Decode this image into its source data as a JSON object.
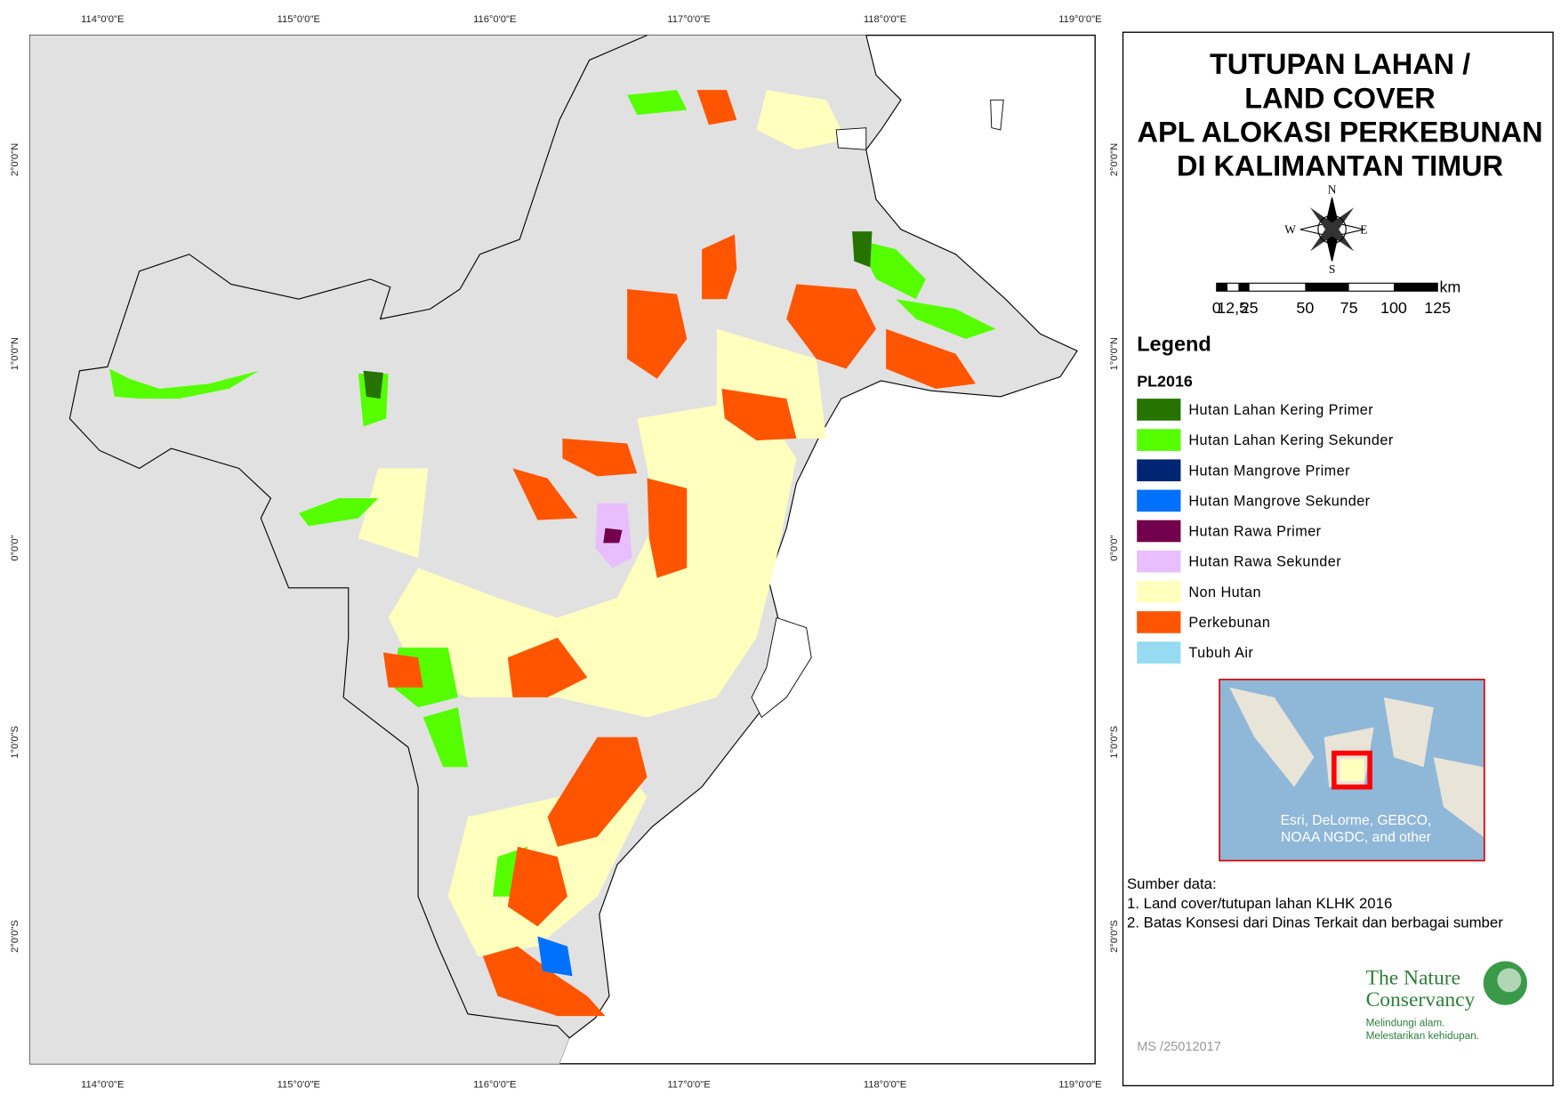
{
  "map": {
    "title": [
      "TUTUPAN LAHAN /",
      "LAND COVER",
      "APL ALOKASI PERKEBUNAN",
      "DI KALIMANTAN TIMUR"
    ],
    "top_labels": [
      "114°0'0\"E",
      "115°0'0\"E",
      "116°0'0\"E",
      "117°0'0\"E",
      "118°0'0\"E",
      "119°0'0\"E"
    ],
    "bottom_labels": [
      "114°0'0\"E",
      "115°0'0\"E",
      "116°0'0\"E",
      "117°0'0\"E",
      "118°0'0\"E",
      "119°0'0\"E"
    ],
    "left_labels": [
      "2°0'0\"N",
      "1°0'0\"N",
      "0°0'0\"",
      "1°0'0\"S",
      "2°0'0\"S"
    ],
    "right_labels": [
      "2°0'0\"N",
      "1°0'0\"N",
      "0°0'0\"",
      "1°0'0\"S",
      "2°0'0\"S"
    ]
  },
  "compass": {
    "n": "N",
    "s": "S",
    "w": "W",
    "e": "E"
  },
  "scale_bar": {
    "labels": [
      "0",
      "12,5",
      "25",
      "50",
      "75",
      "100",
      "125"
    ],
    "unit": "km"
  },
  "legend": {
    "title": "Legend",
    "subtitle": "PL2016",
    "items": [
      {
        "label": "Hutan Lahan Kering Primer",
        "color": "#267300"
      },
      {
        "label": "Hutan Lahan Kering Sekunder",
        "color": "#55ff00"
      },
      {
        "label": "Hutan Mangrove Primer",
        "color": "#002673"
      },
      {
        "label": "Hutan Mangrove Sekunder",
        "color": "#0070ff"
      },
      {
        "label": "Hutan Rawa Primer",
        "color": "#73004c"
      },
      {
        "label": "Hutan Rawa Sekunder",
        "color": "#e8beff"
      },
      {
        "label": "Non Hutan",
        "color": "#ffffbe"
      },
      {
        "label": "Perkebunan",
        "color": "#ff5500"
      },
      {
        "label": "Tubuh Air",
        "color": "#97dbf2"
      }
    ]
  },
  "inset": {
    "attribution": [
      "Esri, DeLorme, GEBCO,",
      "NOAA NGDC, and other"
    ]
  },
  "sources": {
    "heading": "Sumber data:",
    "lines": [
      "1. Land cover/tutupan lahan KLHK 2016",
      "2. Batas Konsesi dari Dinas Terkait dan berbagai sumber"
    ]
  },
  "logo": {
    "name": [
      "The Nature",
      "Conservancy"
    ],
    "tagline": [
      "Melindungi alam.",
      "Melestarikan kehidupan."
    ]
  },
  "footer": "MS /25012017"
}
